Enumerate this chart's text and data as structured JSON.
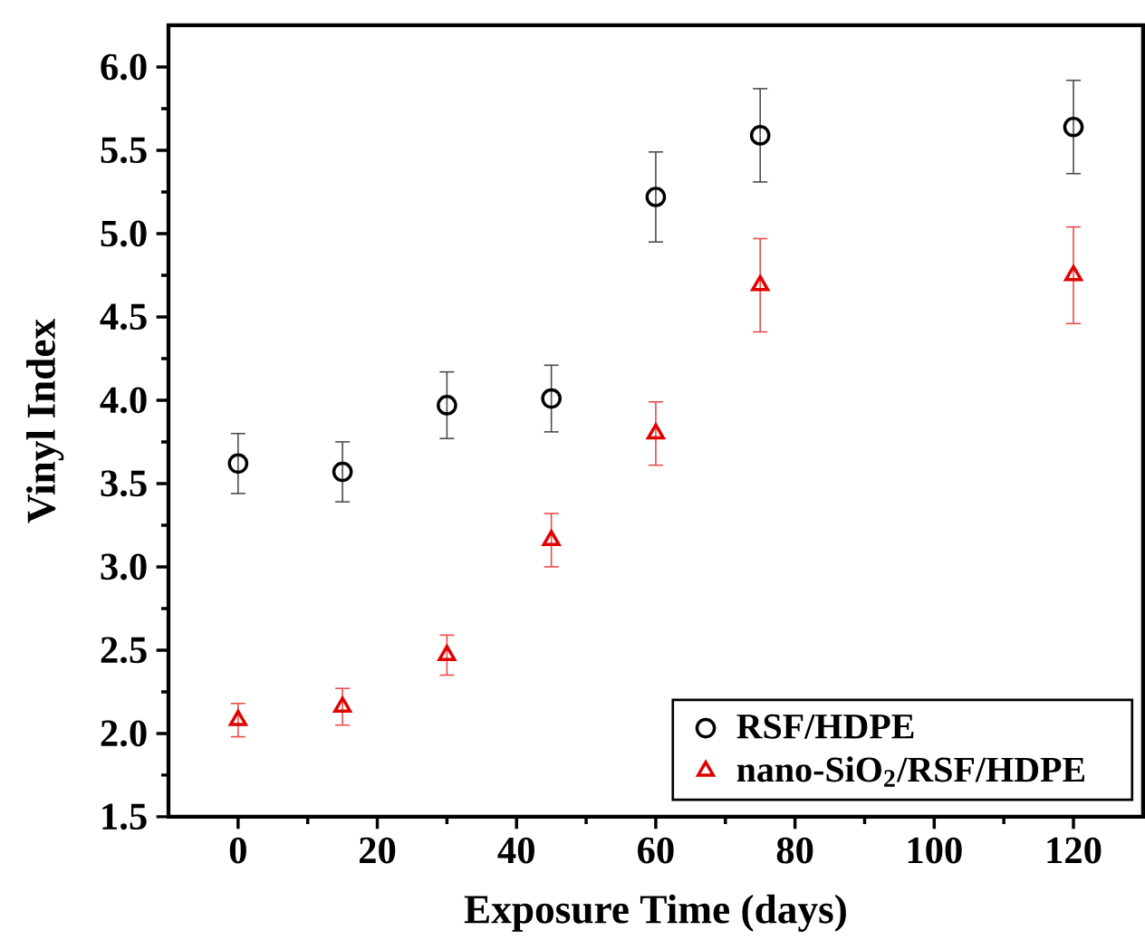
{
  "chart_data": {
    "type": "scatter",
    "xlabel": "Exposure Time (days)",
    "ylabel": "Vinyl Index",
    "x": [
      0,
      15,
      30,
      45,
      60,
      75,
      120
    ],
    "series": [
      {
        "name": "RSF/HDPE",
        "color": "#000000",
        "marker": "circle",
        "values": [
          3.62,
          3.57,
          3.97,
          4.01,
          5.22,
          5.59,
          5.64
        ],
        "errors": [
          0.18,
          0.18,
          0.2,
          0.2,
          0.27,
          0.28,
          0.28
        ]
      },
      {
        "name": "nano-SiO$_{2}$/RSF/HDPE",
        "color": "#e00000",
        "marker": "triangle",
        "values": [
          2.08,
          2.16,
          2.47,
          3.16,
          3.8,
          4.69,
          4.75
        ],
        "errors": [
          0.1,
          0.11,
          0.12,
          0.16,
          0.19,
          0.28,
          0.29
        ]
      }
    ],
    "xlim": [
      -10,
      130
    ],
    "ylim": [
      1.5,
      6.25
    ],
    "xticks": [
      0,
      20,
      40,
      60,
      80,
      100,
      120
    ],
    "yticks": [
      1.5,
      {
        "value": 2,
        "label": "2.0"
      },
      2.5,
      {
        "value": 3,
        "label": "3.0"
      },
      3.5,
      {
        "value": 4,
        "label": "4.0"
      },
      4.5,
      {
        "value": 5,
        "label": "5.0"
      },
      5.5,
      {
        "value": 6,
        "label": "6.0"
      }
    ],
    "legend": "bottom right",
    "grid": false
  }
}
